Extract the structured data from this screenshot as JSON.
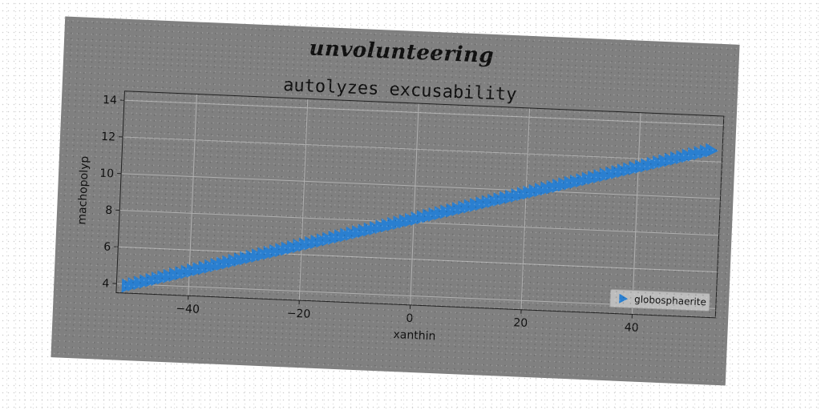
{
  "figure": {
    "suptitle": "unvolunteering"
  },
  "chart_data": {
    "type": "line",
    "title": "autolyzes excusability",
    "xlabel": "xanthin",
    "ylabel": "machopolyp",
    "xlim": [
      -53,
      55
    ],
    "ylim": [
      3.5,
      14.5
    ],
    "xticks": [
      -40,
      -20,
      0,
      20,
      40
    ],
    "yticks": [
      4,
      6,
      8,
      10,
      12,
      14
    ],
    "xtick_labels": [
      "−40",
      "−20",
      "0",
      "20",
      "40"
    ],
    "ytick_labels": [
      "4",
      "6",
      "8",
      "10",
      "12",
      "14"
    ],
    "grid": true,
    "legend_position": "lower-right",
    "series": [
      {
        "name": "globosphaerite",
        "marker": "triangle-right",
        "color": "#2a7fd0",
        "x_start": -51,
        "x_end": 53,
        "y_start": 3.9,
        "y_end": 12.6,
        "points": 100
      }
    ]
  }
}
